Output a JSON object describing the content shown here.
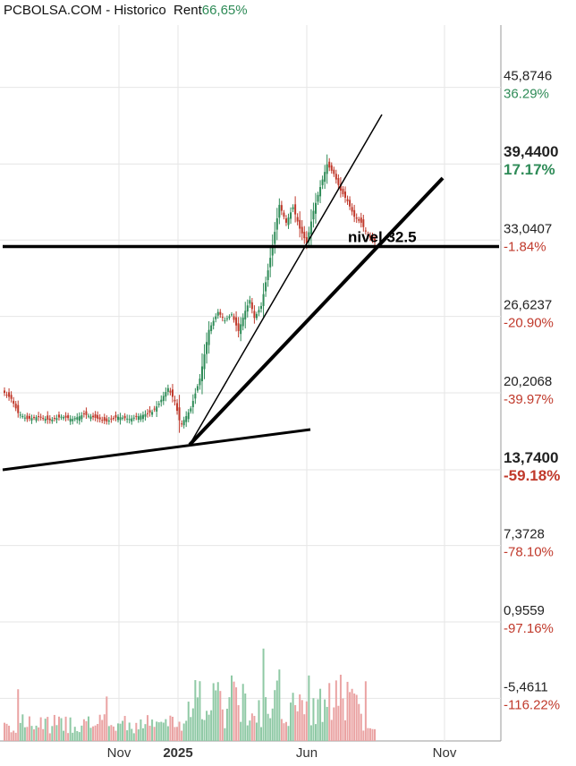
{
  "header": {
    "title": "PCBOLSA.COM - Historico",
    "rent_label": "Rent",
    "rent_value": "66,65%"
  },
  "colors": {
    "up": "#2e8b57",
    "down": "#c0392b",
    "grid": "#e6e6e6",
    "line": "#000000",
    "vol_up": "#8fc9a5",
    "vol_down": "#eaa3a3"
  },
  "chart_data": {
    "type": "candlestick",
    "x_ticks": [
      {
        "label": "Nov",
        "bold": false
      },
      {
        "label": "2025",
        "bold": true
      },
      {
        "label": "Jun",
        "bold": false
      },
      {
        "label": "Nov",
        "bold": false
      }
    ],
    "y_levels": [
      {
        "price": "45,8746",
        "pct": "36.29%",
        "value": 45.8746,
        "bold": false,
        "sign": "pos"
      },
      {
        "price": "39,4400",
        "pct": "17.17%",
        "value": 39.44,
        "bold": true,
        "sign": "pos"
      },
      {
        "price": "33,0407",
        "pct": "-1.84%",
        "value": 33.0407,
        "bold": false,
        "sign": "neg"
      },
      {
        "price": "26,6237",
        "pct": "-20.90%",
        "value": 26.6237,
        "bold": false,
        "sign": "neg"
      },
      {
        "price": "20,2068",
        "pct": "-39.97%",
        "value": 20.2068,
        "bold": false,
        "sign": "neg"
      },
      {
        "price": "13,7400",
        "pct": "-59.18%",
        "value": 13.74,
        "bold": true,
        "sign": "neg"
      },
      {
        "price": "7,3728",
        "pct": "-78.10%",
        "value": 7.3728,
        "bold": false,
        "sign": "neg"
      },
      {
        "price": "0,9559",
        "pct": "-97.16%",
        "value": 0.9559,
        "bold": false,
        "sign": "neg"
      },
      {
        "price": "-5,4611",
        "pct": "-116.22%",
        "value": -5.4611,
        "bold": false,
        "sign": "neg"
      }
    ],
    "annotation": "nivel 32.5",
    "support_level": 32.5,
    "price_path": [
      [
        0,
        20.2
      ],
      [
        3,
        19.7
      ],
      [
        6,
        18.5
      ],
      [
        10,
        18.0
      ],
      [
        15,
        18.2
      ],
      [
        20,
        17.9
      ],
      [
        25,
        18.2
      ],
      [
        30,
        18.0
      ],
      [
        35,
        18.4
      ],
      [
        40,
        18.1
      ],
      [
        45,
        17.8
      ],
      [
        50,
        18.2
      ],
      [
        55,
        18.0
      ],
      [
        60,
        18.3
      ],
      [
        65,
        18.6
      ],
      [
        68,
        19.3
      ],
      [
        72,
        20.6
      ],
      [
        75,
        19.5
      ],
      [
        77,
        17.9
      ],
      [
        78,
        17.6
      ],
      [
        82,
        18.9
      ],
      [
        86,
        21.4
      ],
      [
        90,
        25.5
      ],
      [
        94,
        27.0
      ],
      [
        97,
        26.3
      ],
      [
        100,
        26.8
      ],
      [
        103,
        25.4
      ],
      [
        106,
        27.1
      ],
      [
        108,
        28.0
      ],
      [
        110,
        26.5
      ],
      [
        113,
        27.5
      ],
      [
        116,
        30.5
      ],
      [
        118,
        32.6
      ],
      [
        121,
        36.0
      ],
      [
        124,
        34.5
      ],
      [
        127,
        35.8
      ],
      [
        130,
        34.0
      ],
      [
        133,
        32.8
      ],
      [
        136,
        35.5
      ],
      [
        139,
        37.5
      ],
      [
        142,
        39.4
      ],
      [
        145,
        38.6
      ],
      [
        148,
        37.2
      ],
      [
        151,
        36.3
      ],
      [
        154,
        35.0
      ],
      [
        157,
        34.5
      ],
      [
        160,
        33.4
      ],
      [
        163,
        32.9
      ]
    ]
  }
}
